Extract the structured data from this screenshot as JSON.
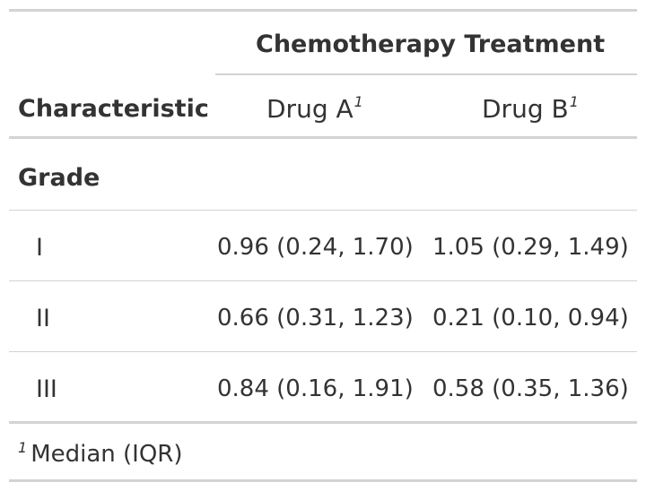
{
  "table": {
    "spanner": "Chemotherapy Treatment",
    "header": {
      "characteristic": "Characteristic",
      "drug_a": "Drug A",
      "drug_b": "Drug B",
      "footnote_marker": "1"
    },
    "group": "Grade",
    "rows": [
      {
        "label": "I",
        "drug_a": "0.96 (0.24, 1.70)",
        "drug_b": "1.05 (0.29, 1.49)"
      },
      {
        "label": "II",
        "drug_a": "0.66 (0.31, 1.23)",
        "drug_b": "0.21 (0.10, 0.94)"
      },
      {
        "label": "III",
        "drug_a": "0.84 (0.16, 1.91)",
        "drug_b": "0.58 (0.35, 1.36)"
      }
    ],
    "footnote": {
      "marker": "1",
      "text": "Median (IQR)"
    }
  }
}
